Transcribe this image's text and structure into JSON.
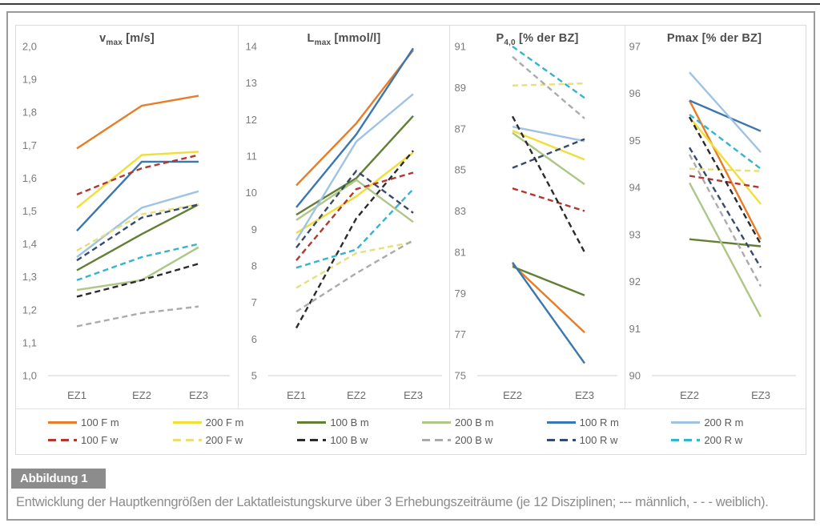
{
  "caption": {
    "label": "Abbildung 1",
    "text": "Entwicklung der Hauptkenngrößen der Laktatleistungskurve über 3 Erhebungszeiträume (je 12 Disziplinen; --- männlich, - - - weiblich)."
  },
  "legend": {
    "entries": [
      {
        "label": "100 F m",
        "color": "#E87C27",
        "dash": false
      },
      {
        "label": "200 F m",
        "color": "#F0DE39",
        "dash": false
      },
      {
        "label": "100 B m",
        "color": "#637F36",
        "dash": false
      },
      {
        "label": "200 B m",
        "color": "#AEC687",
        "dash": false
      },
      {
        "label": "100 R m",
        "color": "#3A76B2",
        "dash": false
      },
      {
        "label": "200 R m",
        "color": "#9FC3E3",
        "dash": false
      },
      {
        "label": "100 F w",
        "color": "#B23730",
        "dash": true
      },
      {
        "label": "200 F w",
        "color": "#E6DF7A",
        "dash": true
      },
      {
        "label": "100 B w",
        "color": "#2B2B2B",
        "dash": true
      },
      {
        "label": "200 B w",
        "color": "#ABABAB",
        "dash": true
      },
      {
        "label": "100 R w",
        "color": "#364A6E",
        "dash": true
      },
      {
        "label": "200 R w",
        "color": "#35B4CE",
        "dash": true
      }
    ]
  },
  "chart_data": [
    {
      "id": "vmax",
      "type": "line",
      "title": {
        "prefix": "v",
        "sub": "max",
        "suffix": " [m/s]"
      },
      "categories": [
        "EZ1",
        "EZ2",
        "EZ3"
      ],
      "ylim": [
        1.0,
        2.0
      ],
      "yticks": [
        "2,0",
        "1,9",
        "1,8",
        "1,7",
        "1,6",
        "1,5",
        "1,4",
        "1,3",
        "1,2",
        "1,1",
        "1,0"
      ],
      "grid": false,
      "series": [
        {
          "name": "100 F m",
          "values": [
            1.69,
            1.82,
            1.85
          ]
        },
        {
          "name": "200 F m",
          "values": [
            1.51,
            1.67,
            1.68
          ]
        },
        {
          "name": "100 B m",
          "values": [
            1.32,
            1.43,
            1.52
          ]
        },
        {
          "name": "200 B m",
          "values": [
            1.26,
            1.29,
            1.39
          ]
        },
        {
          "name": "100 R m",
          "values": [
            1.44,
            1.65,
            1.65
          ]
        },
        {
          "name": "200 R m",
          "values": [
            1.36,
            1.51,
            1.56
          ]
        },
        {
          "name": "100 F w",
          "values": [
            1.55,
            1.63,
            1.67
          ]
        },
        {
          "name": "200 F w",
          "values": [
            1.38,
            1.49,
            1.52
          ]
        },
        {
          "name": "100 B w",
          "values": [
            1.24,
            1.29,
            1.34
          ]
        },
        {
          "name": "200 B w",
          "values": [
            1.15,
            1.19,
            1.21
          ]
        },
        {
          "name": "100 R w",
          "values": [
            1.35,
            1.48,
            1.52
          ]
        },
        {
          "name": "200 R w",
          "values": [
            1.29,
            1.36,
            1.4
          ]
        }
      ]
    },
    {
      "id": "lmax",
      "type": "line",
      "title": {
        "prefix": "L",
        "sub": "max",
        "suffix": " [mmol/l]"
      },
      "categories": [
        "EZ1",
        "EZ2",
        "EZ3"
      ],
      "ylim": [
        5,
        14
      ],
      "yticks": [
        "14",
        "13",
        "12",
        "11",
        "10",
        "9",
        "8",
        "7",
        "6",
        "5"
      ],
      "grid": false,
      "series": [
        {
          "name": "100 F m",
          "values": [
            10.2,
            11.9,
            13.9
          ]
        },
        {
          "name": "200 F m",
          "values": [
            8.9,
            9.9,
            11.1
          ]
        },
        {
          "name": "100 B m",
          "values": [
            9.4,
            10.4,
            12.1
          ]
        },
        {
          "name": "200 B m",
          "values": [
            9.25,
            10.35,
            9.2
          ]
        },
        {
          "name": "100 R m",
          "values": [
            9.6,
            11.6,
            13.95
          ]
        },
        {
          "name": "200 R m",
          "values": [
            8.7,
            11.4,
            12.7
          ]
        },
        {
          "name": "100 F w",
          "values": [
            8.15,
            10.1,
            10.55
          ]
        },
        {
          "name": "200 F w",
          "values": [
            7.4,
            8.35,
            8.65
          ]
        },
        {
          "name": "100 B w",
          "values": [
            6.3,
            9.3,
            11.15
          ]
        },
        {
          "name": "200 B w",
          "values": [
            6.75,
            7.8,
            8.7
          ]
        },
        {
          "name": "100 R w",
          "values": [
            8.5,
            10.6,
            9.45
          ]
        },
        {
          "name": "200 R w",
          "values": [
            7.95,
            8.45,
            10.1
          ]
        }
      ]
    },
    {
      "id": "p40",
      "type": "line",
      "title": {
        "prefix": "P",
        "sub": "4,0",
        "suffix": " [% der BZ]"
      },
      "categories": [
        "EZ2",
        "EZ3"
      ],
      "ylim": [
        75,
        91
      ],
      "yticks": [
        "91",
        "89",
        "87",
        "85",
        "83",
        "81",
        "79",
        "77",
        "75"
      ],
      "grid": false,
      "series": [
        {
          "name": "100 F m",
          "values": [
            80.4,
            77.1
          ]
        },
        {
          "name": "200 F m",
          "values": [
            86.9,
            85.5
          ]
        },
        {
          "name": "100 B m",
          "values": [
            80.3,
            78.9
          ]
        },
        {
          "name": "200 B m",
          "values": [
            86.8,
            84.3
          ]
        },
        {
          "name": "100 R m",
          "values": [
            80.5,
            75.6
          ]
        },
        {
          "name": "200 R m",
          "values": [
            87.1,
            86.4
          ]
        },
        {
          "name": "100 F w",
          "values": [
            84.1,
            83.0
          ]
        },
        {
          "name": "200 F w",
          "values": [
            89.1,
            89.2
          ]
        },
        {
          "name": "100 B w",
          "values": [
            87.6,
            81.0
          ]
        },
        {
          "name": "200 B w",
          "values": [
            90.5,
            87.5
          ]
        },
        {
          "name": "100 R w",
          "values": [
            85.1,
            86.5
          ]
        },
        {
          "name": "200 R w",
          "values": [
            91.0,
            88.5
          ]
        }
      ]
    },
    {
      "id": "pmax",
      "type": "line",
      "title": {
        "prefix": "Pmax",
        "sub": "",
        "suffix": " [% der BZ]"
      },
      "categories": [
        "EZ2",
        "EZ3"
      ],
      "ylim": [
        90,
        97
      ],
      "yticks": [
        "97",
        "96",
        "95",
        "94",
        "93",
        "92",
        "91",
        "90"
      ],
      "grid": false,
      "series": [
        {
          "name": "100 F m",
          "values": [
            95.85,
            92.9
          ]
        },
        {
          "name": "200 F m",
          "values": [
            95.5,
            93.65
          ]
        },
        {
          "name": "100 B m",
          "values": [
            92.9,
            92.75
          ]
        },
        {
          "name": "200 B m",
          "values": [
            94.1,
            91.25
          ]
        },
        {
          "name": "100 R m",
          "values": [
            95.85,
            95.2
          ]
        },
        {
          "name": "200 R m",
          "values": [
            96.45,
            94.75
          ]
        },
        {
          "name": "100 F w",
          "values": [
            94.25,
            94.0
          ]
        },
        {
          "name": "200 F w",
          "values": [
            94.4,
            94.35
          ]
        },
        {
          "name": "100 B w",
          "values": [
            95.5,
            92.8
          ]
        },
        {
          "name": "200 B w",
          "values": [
            94.7,
            91.9
          ]
        },
        {
          "name": "100 R w",
          "values": [
            94.85,
            92.3
          ]
        },
        {
          "name": "200 R w",
          "values": [
            95.55,
            94.4
          ]
        }
      ]
    }
  ]
}
